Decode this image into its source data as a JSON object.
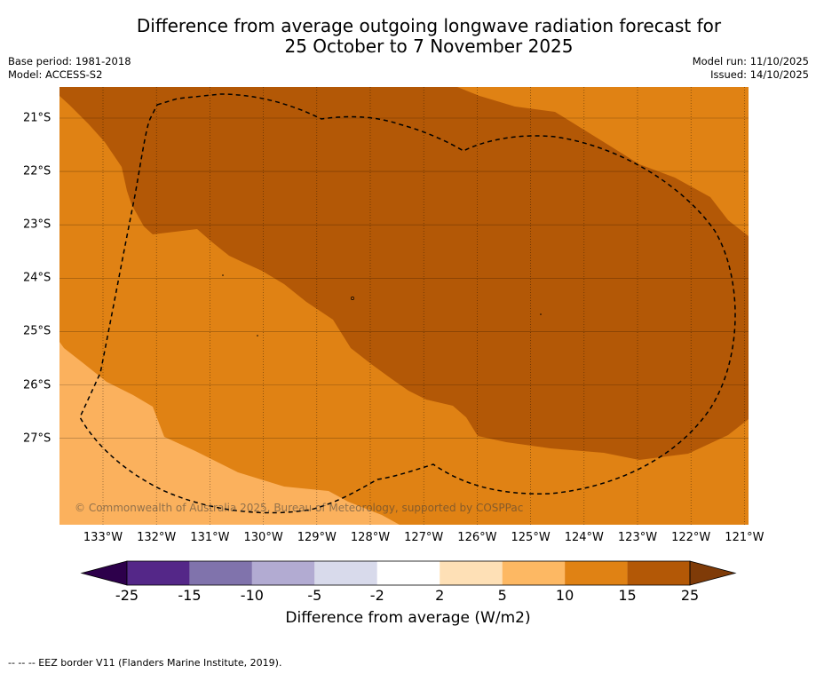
{
  "title": {
    "line1": "Difference from average outgoing longwave radiation forecast for",
    "line2": "25 October to 7 November 2025"
  },
  "meta": {
    "base_period": "Base period: 1981-2018",
    "model": "Model: ACCESS-S2",
    "model_run": "Model run: 11/10/2025",
    "issued": "Issued: 14/10/2025"
  },
  "map": {
    "lon_labels": [
      "133°W",
      "132°W",
      "131°W",
      "130°W",
      "129°W",
      "128°W",
      "127°W",
      "126°W",
      "125°W",
      "124°W",
      "123°W",
      "122°W",
      "121°W"
    ],
    "lat_labels": [
      "21°S",
      "22°S",
      "23°S",
      "24°S",
      "25°S",
      "26°S",
      "27°S"
    ],
    "copyright": "© Commonwealth of Australia 2025, Bureau of Meteorology, supported by COSPPac",
    "colors": {
      "anom_5_10": "#fbb15d",
      "anom_10_15": "#e08214",
      "anom_15_25": "#b35806",
      "grid": "#000000",
      "eez": "#000000"
    }
  },
  "colorbar": {
    "ticks": [
      "-25",
      "-15",
      "-10",
      "-5",
      "-2",
      "2",
      "5",
      "10",
      "15",
      "25"
    ],
    "colors": [
      "#542788",
      "#8073ac",
      "#b2abd2",
      "#d8daeb",
      "#ffffff",
      "#fee0b6",
      "#fdb863",
      "#e08214",
      "#b35806"
    ],
    "under_color": "#2d004b",
    "over_color": "#7f3b08",
    "label": "Difference from average (W/m2)"
  },
  "footer": {
    "legend_line": "--  --  -- EEZ border V11 (Flanders Marine Institute, 2019)."
  }
}
